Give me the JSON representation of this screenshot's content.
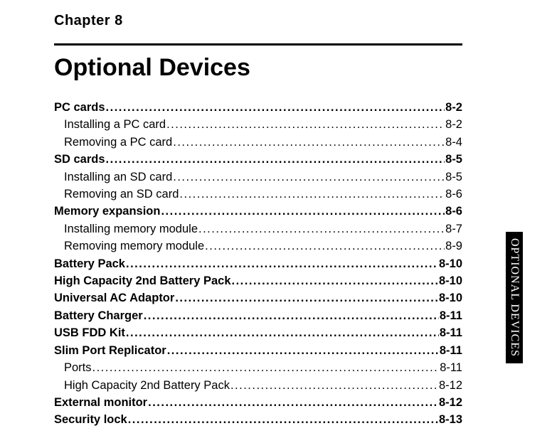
{
  "chapter_label": "Chapter  8",
  "title": "Optional Devices",
  "side_tab": "OPTIONAL DEVICES",
  "toc": [
    {
      "label": "PC cards",
      "page": "8-2",
      "bold": true,
      "indent": 0
    },
    {
      "label": "Installing a PC card",
      "page": "8-2",
      "bold": false,
      "indent": 1
    },
    {
      "label": "Removing a PC card",
      "page": "8-4",
      "bold": false,
      "indent": 1
    },
    {
      "label": "SD cards",
      "page": "8-5",
      "bold": true,
      "indent": 0
    },
    {
      "label": "Installing an SD card",
      "page": "8-5",
      "bold": false,
      "indent": 1
    },
    {
      "label": "Removing an SD card",
      "page": "8-6",
      "bold": false,
      "indent": 1
    },
    {
      "label": "Memory expansion",
      "page": "8-6",
      "bold": true,
      "indent": 0
    },
    {
      "label": "Installing memory module",
      "page": "8-7",
      "bold": false,
      "indent": 1
    },
    {
      "label": "Removing memory module",
      "page": "8-9",
      "bold": false,
      "indent": 1
    },
    {
      "label": "Battery Pack",
      "page": "8-10",
      "bold": true,
      "indent": 0
    },
    {
      "label": "High Capacity 2nd Battery Pack",
      "page": "8-10",
      "bold": true,
      "indent": 0
    },
    {
      "label": "Universal AC Adaptor",
      "page": "8-10",
      "bold": true,
      "indent": 0
    },
    {
      "label": "Battery Charger",
      "page": "8-11",
      "bold": true,
      "indent": 0
    },
    {
      "label": "USB FDD Kit",
      "page": "8-11",
      "bold": true,
      "indent": 0
    },
    {
      "label": "Slim Port Replicator",
      "page": "8-11",
      "bold": true,
      "indent": 0
    },
    {
      "label": "Ports",
      "page": "8-11",
      "bold": false,
      "indent": 1
    },
    {
      "label": "High Capacity 2nd Battery Pack",
      "page": "8-12",
      "bold": false,
      "indent": 1
    },
    {
      "label": "External monitor",
      "page": "8-12",
      "bold": true,
      "indent": 0
    },
    {
      "label": "Security lock",
      "page": "8-13",
      "bold": true,
      "indent": 0
    }
  ]
}
